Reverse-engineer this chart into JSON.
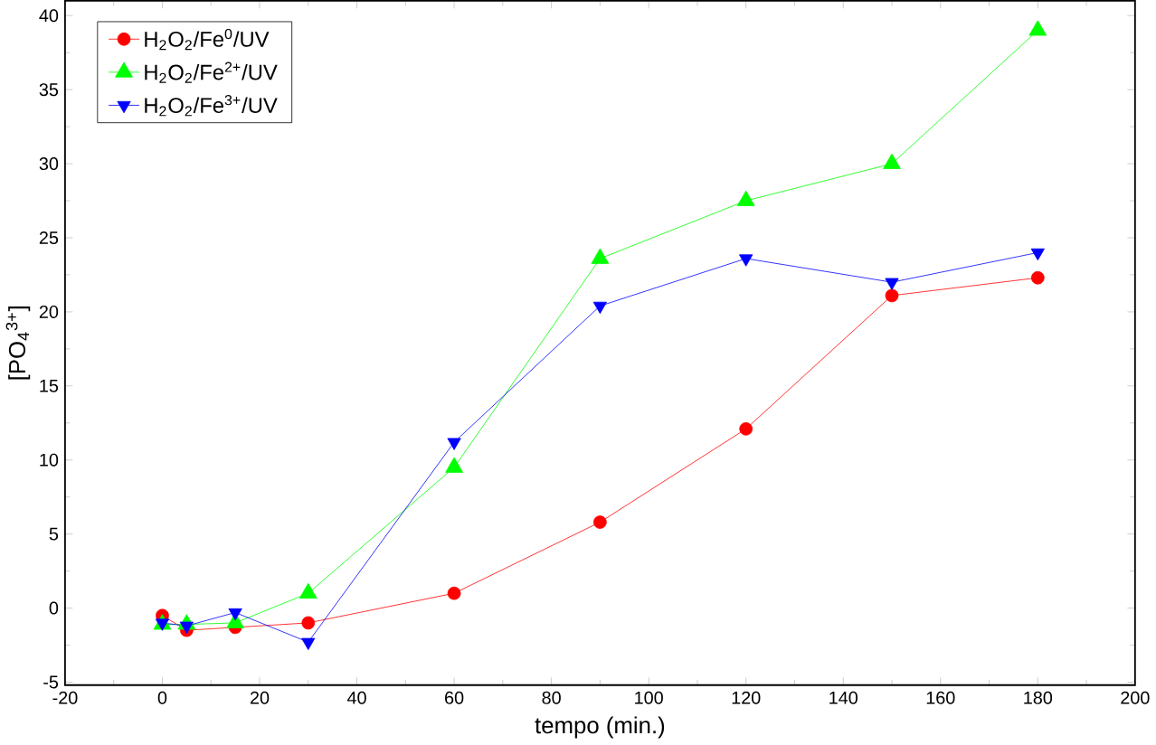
{
  "chart_data": {
    "type": "line",
    "xlabel": "tempo (min.)",
    "ylabel": "[PO$_{4}$$^{3+}$]",
    "x": [
      0,
      5,
      15,
      30,
      60,
      90,
      120,
      150,
      180
    ],
    "series": [
      {
        "name": "H$_{2}$O$_{2}$/Fe$^{0}$/UV",
        "color": "#ff0000",
        "marker": "circle",
        "values": [
          -0.5,
          -1.5,
          -1.3,
          -1.0,
          1.0,
          5.8,
          12.1,
          21.1,
          22.3
        ]
      },
      {
        "name": "H$_{2}$O$_{2}$/Fe$^{2+}$/UV",
        "color": "#00ff00",
        "marker": "triangle",
        "values": [
          -1.1,
          -1.1,
          -1.0,
          1.0,
          9.5,
          23.6,
          27.5,
          30.0,
          39.0
        ]
      },
      {
        "name": "H$_{2}$O$_{2}$/Fe$^{3+}$/UV",
        "color": "#0000ff",
        "marker": "triangle-down",
        "values": [
          -1.0,
          -1.2,
          -0.3,
          -2.3,
          11.2,
          20.4,
          23.6,
          22.0,
          24.0
        ]
      }
    ],
    "xlim": [
      -20,
      200
    ],
    "xticks": [
      -20,
      0,
      20,
      40,
      60,
      80,
      100,
      120,
      140,
      160,
      180,
      200
    ],
    "ylim": [
      -5.2,
      41
    ],
    "yticks": [
      -5,
      0,
      5,
      10,
      15,
      20,
      25,
      30,
      35,
      40
    ],
    "legend": "top left",
    "line_style": "solid"
  }
}
